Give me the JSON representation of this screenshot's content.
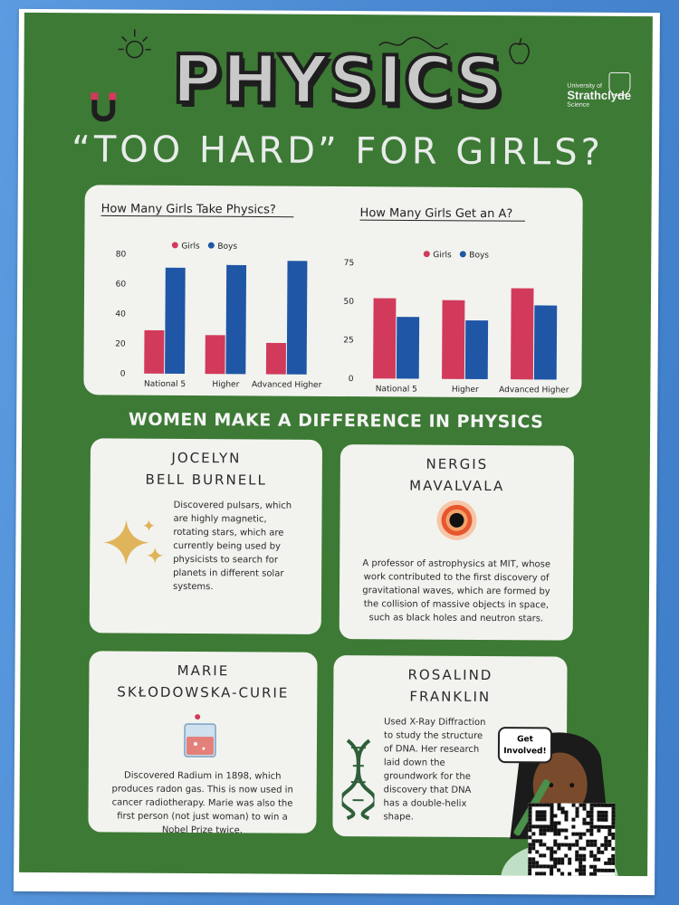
{
  "poster": {
    "title": "PHYSICS",
    "subtitle": "“TOO HARD” FOR GIRLS?",
    "logo": {
      "line1": "University of",
      "line2": "Strathclyde",
      "line3": "Science"
    },
    "section_heading": "WOMEN MAKE A DIFFERENCE IN PHYSICS"
  },
  "chart_data": [
    {
      "type": "bar",
      "title": "How Many Girls Take Physics?",
      "categories": [
        "National 5",
        "Higher",
        "Advanced Higher"
      ],
      "series": [
        {
          "name": "Girls",
          "values": [
            29,
            26,
            21
          ],
          "color": "#d23a5c"
        },
        {
          "name": "Boys",
          "values": [
            71,
            73,
            76
          ],
          "color": "#1f56a6"
        }
      ],
      "ylim": [
        0,
        80
      ],
      "yticks": [
        "0",
        "20",
        "40",
        "60",
        "80"
      ],
      "legend": "top-center"
    },
    {
      "type": "bar",
      "title": "How Many Girls Get an A?",
      "categories": [
        "National 5",
        "Higher",
        "Advanced Higher"
      ],
      "series": [
        {
          "name": "Girls",
          "values": [
            52,
            51,
            59
          ],
          "color": "#d23a5c"
        },
        {
          "name": "Boys",
          "values": [
            40,
            38,
            48
          ],
          "color": "#1f56a6"
        }
      ],
      "ylim": [
        0,
        75
      ],
      "yticks": [
        "0",
        "25",
        "50",
        "75"
      ],
      "legend": "top-center"
    }
  ],
  "cards": [
    {
      "name_line1": "JOCELYN",
      "name_line2": "BELL BURNELL",
      "description": [
        "Discovered pulsars, which",
        "are highly magnetic,",
        "rotating stars, which are",
        "currently being used by",
        "physicists to search for",
        "planets in different solar",
        "systems."
      ],
      "icon": "sparkle-icon"
    },
    {
      "name_line1": "NERGIS",
      "name_line2": "MAVALVALA",
      "description": [
        "A professor of astrophysics at MIT, whose",
        "work contributed to  the first discovery of",
        "gravitational waves, which are formed by",
        "the collision of massive objects in space,",
        "such as black holes and neutron stars."
      ],
      "icon": "black-hole-icon"
    },
    {
      "name_line1": "MARIE",
      "name_line2": "SKŁODOWSKA-CURIE",
      "description": [
        "Discovered Radium in 1898, which",
        "produces radon gas. This is now used in",
        "cancer radiotherapy. Marie was also the",
        "first person (not just woman) to win a",
        "Nobel Prize twice."
      ],
      "icon": "beaker-icon"
    },
    {
      "name_line1": "ROSALIND",
      "name_line2": "FRANKLIN",
      "description": [
        "Used X-Ray Diffraction",
        "to study the structure",
        "of DNA. Her research",
        "laid down the",
        "groundwork for the",
        "discovery that DNA",
        "has a double-helix",
        "shape."
      ],
      "icon": "dna-icon"
    }
  ],
  "speech_bubble": {
    "line1": "Get",
    "line2": "Involved!"
  },
  "colors": {
    "poster_green": "#3d7a35",
    "card_bg": "#f2f3ee",
    "girls": "#d23a5c",
    "boys": "#1f56a6"
  }
}
